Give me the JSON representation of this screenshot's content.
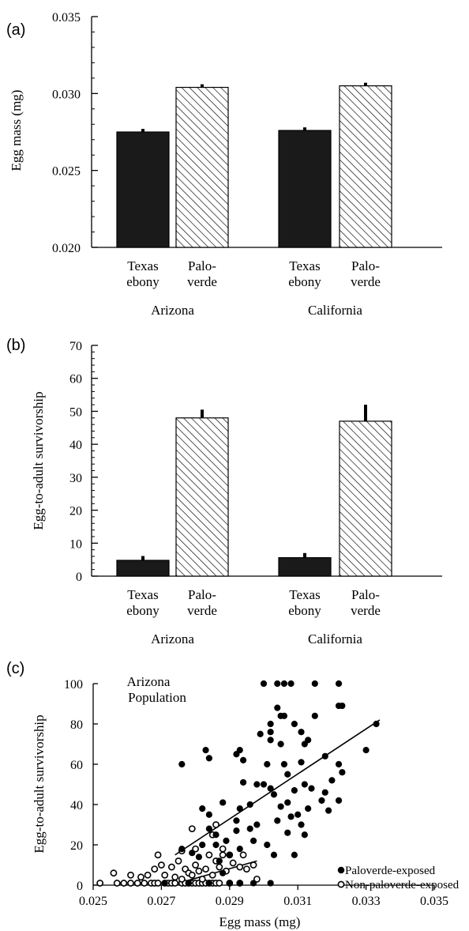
{
  "chart_data": [
    {
      "type": "bar",
      "panel_label": "(a)",
      "ylabel": "Egg mass (mg)",
      "ylim": [
        0.02,
        0.035
      ],
      "yticks": [
        "0.020",
        "0.025",
        "0.030",
        "0.035"
      ],
      "groups": [
        {
          "name": "Arizona",
          "bars": [
            {
              "category": "Texas ebony",
              "label_lines": [
                "Texas",
                "ebony"
              ],
              "value": 0.0275,
              "error": 0.0002,
              "fill": "solid"
            },
            {
              "category": "Palo-verde",
              "label_lines": [
                "Palo-",
                "verde"
              ],
              "value": 0.0304,
              "error": 0.0002,
              "fill": "hatched"
            }
          ]
        },
        {
          "name": "California",
          "bars": [
            {
              "category": "Texas ebony",
              "label_lines": [
                "Texas",
                "ebony"
              ],
              "value": 0.0276,
              "error": 0.0002,
              "fill": "solid"
            },
            {
              "category": "Palo-verde",
              "label_lines": [
                "Palo-",
                "verde"
              ],
              "value": 0.0305,
              "error": 0.0002,
              "fill": "hatched"
            }
          ]
        }
      ]
    },
    {
      "type": "bar",
      "panel_label": "(b)",
      "ylabel": "Egg-to-adult survivorship",
      "ylim": [
        0,
        70
      ],
      "yticks": [
        "0",
        "10",
        "20",
        "30",
        "40",
        "50",
        "60",
        "70"
      ],
      "groups": [
        {
          "name": "Arizona",
          "bars": [
            {
              "category": "Texas ebony",
              "label_lines": [
                "Texas",
                "ebony"
              ],
              "value": 4.8,
              "error": 1.3,
              "fill": "solid"
            },
            {
              "category": "Palo-verde",
              "label_lines": [
                "Palo-",
                "verde"
              ],
              "value": 48,
              "error": 2.5,
              "fill": "hatched"
            }
          ]
        },
        {
          "name": "California",
          "bars": [
            {
              "category": "Texas ebony",
              "label_lines": [
                "Texas",
                "ebony"
              ],
              "value": 5.6,
              "error": 1.4,
              "fill": "solid"
            },
            {
              "category": "Palo-verde",
              "label_lines": [
                "Palo-",
                "verde"
              ],
              "value": 47,
              "error": 5,
              "fill": "hatched"
            }
          ]
        }
      ]
    },
    {
      "type": "scatter",
      "panel_label": "(c)",
      "annotation_lines": [
        "Arizona",
        "Population"
      ],
      "xlabel": "Egg mass (mg)",
      "ylabel": "Egg-to-adult survivorship",
      "xlim": [
        0.025,
        0.035
      ],
      "ylim": [
        0,
        100
      ],
      "xticks": [
        "0.025",
        "0.027",
        "0.029",
        "0.031",
        "0.033",
        "0.035"
      ],
      "yticks": [
        "0",
        "20",
        "40",
        "60",
        "80",
        "100"
      ],
      "legend_position": "lower-right",
      "series": [
        {
          "name": "Paloverde-exposed",
          "marker": "filled",
          "trendline": [
            [
              0.0274,
              15
            ],
            [
              0.0334,
              82
            ]
          ],
          "points": [
            [
              0.03,
              100
            ],
            [
              0.0304,
              100
            ],
            [
              0.0306,
              100
            ],
            [
              0.0308,
              100
            ],
            [
              0.0315,
              100
            ],
            [
              0.0322,
              100
            ],
            [
              0.0322,
              89
            ],
            [
              0.0323,
              89
            ],
            [
              0.0304,
              88
            ],
            [
              0.0305,
              84
            ],
            [
              0.0306,
              84
            ],
            [
              0.0315,
              84
            ],
            [
              0.0302,
              80
            ],
            [
              0.0309,
              80
            ],
            [
              0.0302,
              76
            ],
            [
              0.0311,
              76
            ],
            [
              0.0333,
              80
            ],
            [
              0.0299,
              75
            ],
            [
              0.0302,
              72
            ],
            [
              0.0313,
              72
            ],
            [
              0.0305,
              70
            ],
            [
              0.0312,
              70
            ],
            [
              0.0293,
              67
            ],
            [
              0.0283,
              67
            ],
            [
              0.0276,
              60
            ],
            [
              0.0284,
              63
            ],
            [
              0.0292,
              65
            ],
            [
              0.0294,
              62
            ],
            [
              0.0301,
              60
            ],
            [
              0.0306,
              60
            ],
            [
              0.0311,
              61
            ],
            [
              0.0318,
              64
            ],
            [
              0.0322,
              60
            ],
            [
              0.033,
              67
            ],
            [
              0.0323,
              56
            ],
            [
              0.032,
              52
            ],
            [
              0.0312,
              50
            ],
            [
              0.0307,
              55
            ],
            [
              0.0298,
              50
            ],
            [
              0.03,
              50
            ],
            [
              0.0294,
              51
            ],
            [
              0.0302,
              48
            ],
            [
              0.0309,
              47
            ],
            [
              0.0314,
              48
            ],
            [
              0.0318,
              46
            ],
            [
              0.0317,
              42
            ],
            [
              0.0322,
              42
            ],
            [
              0.0319,
              37
            ],
            [
              0.0313,
              38
            ],
            [
              0.0307,
              41
            ],
            [
              0.0305,
              39
            ],
            [
              0.0303,
              45
            ],
            [
              0.0296,
              40
            ],
            [
              0.0288,
              41
            ],
            [
              0.0293,
              38
            ],
            [
              0.0284,
              35
            ],
            [
              0.0282,
              38
            ],
            [
              0.0292,
              32
            ],
            [
              0.0298,
              30
            ],
            [
              0.0304,
              32
            ],
            [
              0.0308,
              34
            ],
            [
              0.0311,
              30
            ],
            [
              0.031,
              35
            ],
            [
              0.0312,
              25
            ],
            [
              0.0307,
              26
            ],
            [
              0.0301,
              20
            ],
            [
              0.0296,
              28
            ],
            [
              0.0292,
              27
            ],
            [
              0.0286,
              25
            ],
            [
              0.0282,
              20
            ],
            [
              0.0289,
              22
            ],
            [
              0.0284,
              28
            ],
            [
              0.0297,
              22
            ],
            [
              0.0293,
              18
            ],
            [
              0.0303,
              15
            ],
            [
              0.0309,
              15
            ],
            [
              0.0286,
              20
            ],
            [
              0.029,
              15
            ],
            [
              0.0281,
              14
            ],
            [
              0.0276,
              18
            ],
            [
              0.0279,
              16
            ],
            [
              0.0287,
              12
            ],
            [
              0.029,
              1
            ],
            [
              0.0293,
              1
            ],
            [
              0.0297,
              1
            ],
            [
              0.0302,
              1
            ],
            [
              0.0278,
              1
            ],
            [
              0.0271,
              1
            ],
            [
              0.0284,
              1
            ],
            [
              0.0288,
              6
            ]
          ]
        },
        {
          "name": "Non-paloverde-exposed",
          "marker": "open",
          "trendline": [
            [
              0.0275,
              1
            ],
            [
              0.0298,
              12
            ]
          ],
          "points": [
            [
              0.0252,
              1
            ],
            [
              0.0257,
              1
            ],
            [
              0.0259,
              1
            ],
            [
              0.0261,
              1
            ],
            [
              0.0263,
              1
            ],
            [
              0.0265,
              1
            ],
            [
              0.0267,
              1
            ],
            [
              0.0268,
              1
            ],
            [
              0.0269,
              1
            ],
            [
              0.0271,
              1
            ],
            [
              0.0272,
              1
            ],
            [
              0.0273,
              1
            ],
            [
              0.0274,
              1
            ],
            [
              0.0276,
              1
            ],
            [
              0.0277,
              1
            ],
            [
              0.0278,
              1
            ],
            [
              0.0279,
              1
            ],
            [
              0.028,
              1
            ],
            [
              0.0281,
              1
            ],
            [
              0.0282,
              1
            ],
            [
              0.0283,
              1
            ],
            [
              0.0284,
              1
            ],
            [
              0.0285,
              1
            ],
            [
              0.0286,
              1
            ],
            [
              0.0287,
              1
            ],
            [
              0.029,
              1
            ],
            [
              0.0293,
              1
            ],
            [
              0.0256,
              6
            ],
            [
              0.0261,
              5
            ],
            [
              0.0264,
              4
            ],
            [
              0.0266,
              5
            ],
            [
              0.0268,
              8
            ],
            [
              0.0269,
              15
            ],
            [
              0.027,
              10
            ],
            [
              0.0271,
              5
            ],
            [
              0.0273,
              9
            ],
            [
              0.0274,
              4
            ],
            [
              0.0275,
              12
            ],
            [
              0.0276,
              17
            ],
            [
              0.0276,
              3
            ],
            [
              0.0277,
              8
            ],
            [
              0.0278,
              6
            ],
            [
              0.0279,
              5
            ],
            [
              0.028,
              18
            ],
            [
              0.028,
              10
            ],
            [
              0.0281,
              7
            ],
            [
              0.0282,
              3
            ],
            [
              0.0283,
              8
            ],
            [
              0.0284,
              15
            ],
            [
              0.0285,
              5
            ],
            [
              0.0285,
              25
            ],
            [
              0.0286,
              30
            ],
            [
              0.0286,
              12
            ],
            [
              0.0287,
              9
            ],
            [
              0.0288,
              18
            ],
            [
              0.0289,
              7
            ],
            [
              0.029,
              15
            ],
            [
              0.0291,
              11
            ],
            [
              0.0293,
              9
            ],
            [
              0.0295,
              8
            ],
            [
              0.0297,
              10
            ],
            [
              0.0298,
              3
            ],
            [
              0.0279,
              28
            ],
            [
              0.0288,
              15
            ],
            [
              0.0294,
              15
            ]
          ]
        }
      ]
    }
  ]
}
